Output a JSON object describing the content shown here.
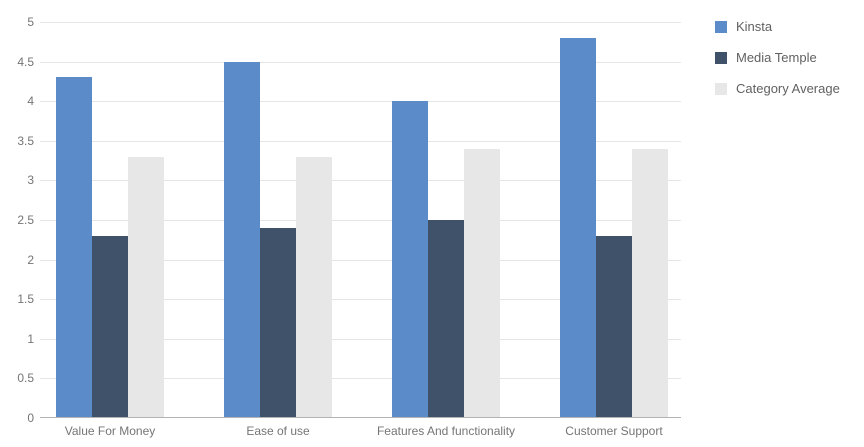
{
  "chart_data": {
    "type": "bar",
    "title": "",
    "categories": [
      "Value For Money",
      "Ease of use",
      "Features And functionality",
      "Customer Support"
    ],
    "series": [
      {
        "name": "Kinsta",
        "color": "#5b8bc9",
        "values": [
          4.3,
          4.5,
          4.0,
          4.8
        ]
      },
      {
        "name": "Media Temple",
        "color": "#3f5269",
        "values": [
          2.3,
          2.4,
          2.5,
          2.3
        ]
      },
      {
        "name": "Category Average",
        "color": "#e7e7e7",
        "values": [
          3.3,
          3.3,
          3.4,
          3.4
        ]
      }
    ],
    "xlabel": "",
    "ylabel": "",
    "ylim": [
      0,
      5
    ],
    "yticks": [
      0,
      0.5,
      1,
      1.5,
      2,
      2.5,
      3,
      3.5,
      4,
      4.5,
      5
    ],
    "grid": true,
    "legend_position": "right"
  },
  "colors": {
    "background": "#ffffff",
    "gridline": "#e6e6e6",
    "baseline": "#b3b3b3",
    "tick_text": "#757575",
    "category_text": "#757575",
    "legend_text": "#616161"
  }
}
